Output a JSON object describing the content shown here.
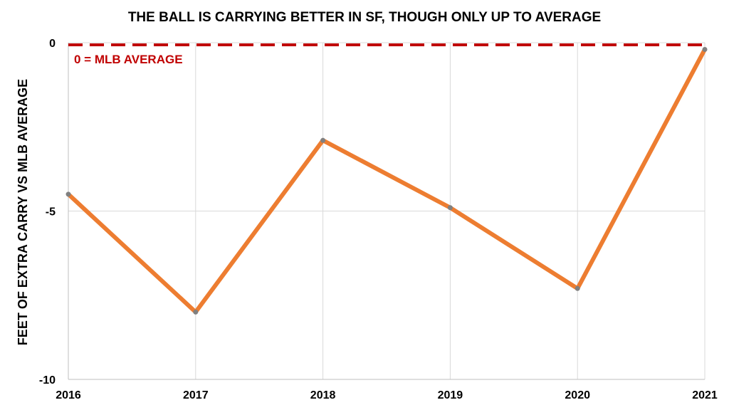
{
  "chart_data": {
    "type": "line",
    "title": "THE BALL IS CARRYING BETTER IN SF, THOUGH ONLY UP TO AVERAGE",
    "xlabel": "",
    "ylabel": "FEET OF EXTRA CARRY VS MLB AVERAGE",
    "categories": [
      "2016",
      "2017",
      "2018",
      "2019",
      "2020",
      "2021"
    ],
    "series": [
      {
        "values": [
          -4.5,
          -8.0,
          -2.9,
          -4.9,
          -7.3,
          -0.2
        ],
        "color": "#ED7D31"
      }
    ],
    "reference_line": {
      "value": 0,
      "label": "0 = MLB AVERAGE",
      "color": "#C00000",
      "style": "dashed"
    },
    "ylim": [
      -10,
      0
    ],
    "yticks": [
      0,
      -5,
      -10
    ],
    "ytick_labels": [
      "0",
      "-5",
      "-10"
    ],
    "grid": true,
    "marker_color": "#808080"
  }
}
